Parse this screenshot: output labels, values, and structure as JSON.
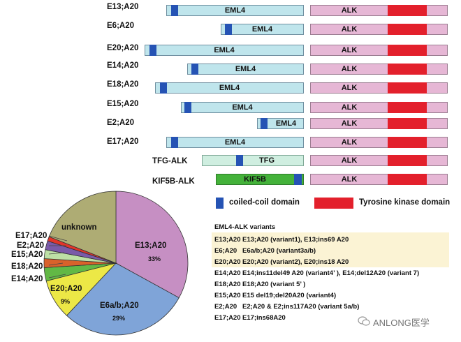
{
  "fusions": [
    {
      "label": "E13;A20",
      "partner": "EML4",
      "alk": "ALK"
    },
    {
      "label": "E6;A20",
      "partner": "EML4",
      "alk": "ALK"
    },
    {
      "label": "E20;A20",
      "partner": "EML4",
      "alk": "ALK"
    },
    {
      "label": "E14;A20",
      "partner": "EML4",
      "alk": "ALK"
    },
    {
      "label": "E18;A20",
      "partner": "EML4",
      "alk": "ALK"
    },
    {
      "label": "E15;A20",
      "partner": "EML4",
      "alk": "ALK"
    },
    {
      "label": "E2;A20",
      "partner": "EML4",
      "alk": "ALK"
    },
    {
      "label": "E17;A20",
      "partner": "EML4",
      "alk": "ALK"
    },
    {
      "label": "TFG-ALK",
      "partner": "TFG",
      "alk": "ALK"
    },
    {
      "label": "KIF5B-ALK",
      "partner": "KIF5B",
      "alk": "ALK"
    }
  ],
  "legend": {
    "coiled_coil": "coiled-coil domain",
    "tyrosine_kinase": "Tyrosine kinase domain",
    "coiled_color": "#2553b4",
    "kinase_color": "#e3202c"
  },
  "chart_data": {
    "type": "pie",
    "slices": [
      {
        "name": "E13;A20",
        "value": 33,
        "label": "33%",
        "color": "#c68fc3"
      },
      {
        "name": "E6a/b;A20",
        "value": 29,
        "label": "29%",
        "color": "#7fa4d8"
      },
      {
        "name": "E20;A20",
        "value": 9,
        "label": "9%",
        "color": "#ece846"
      },
      {
        "name": "E14;A20",
        "value": 3,
        "color": "#62b845"
      },
      {
        "name": "E18;A20",
        "value": 2,
        "color": "#d9622b"
      },
      {
        "name": "E15;A20",
        "value": 2,
        "color": "#bde0a5"
      },
      {
        "name": "E2;A20",
        "value": 2,
        "color": "#7a5aa8"
      },
      {
        "name": "E17;A20",
        "value": 1,
        "color": "#e2342a"
      },
      {
        "name": "unknown",
        "value": 19,
        "color": "#aeac74"
      }
    ]
  },
  "variants": {
    "title": "EML4-ALK variants",
    "rows": [
      {
        "name": "E13;A20",
        "desc": "E13;A20 (variant1), E13;ins69 A20"
      },
      {
        "name": "E6;A20",
        "desc": "E6a/b;A20 (variant3a/b)"
      },
      {
        "name": "E20;A20",
        "desc": "E20;A20 (variant2), E20;ins18 A20"
      },
      {
        "name": "E14;A20",
        "desc": "E14;ins11del49 A20 (variant4’ ), E14;del12A20 (variant 7)"
      },
      {
        "name": "E18;A20",
        "desc": "E18;A20 (variant 5’ )"
      },
      {
        "name": "E15;A20",
        "desc": "E15 del19;del20A20 (variant4)"
      },
      {
        "name": "E2;A20",
        "desc": "E2;A20 & E2;ins117A20 (variant 5a/b)"
      },
      {
        "name": "E17;A20",
        "desc": "E17;ins68A20"
      }
    ]
  },
  "watermark": "ANLONG医学"
}
